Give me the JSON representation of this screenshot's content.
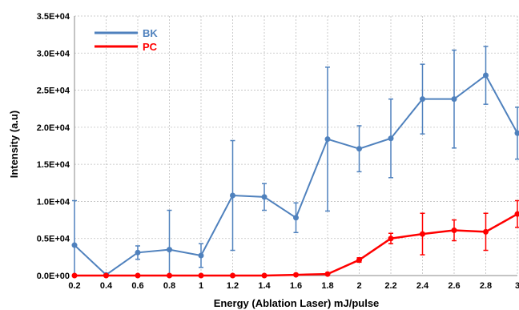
{
  "chart_data": {
    "type": "line",
    "title": "",
    "xlabel": "Energy (Ablation Laser) mJ/pulse",
    "ylabel": "Intensity (a.u)",
    "x": [
      0.2,
      0.4,
      0.6,
      0.8,
      1.0,
      1.2,
      1.4,
      1.6,
      1.8,
      2.0,
      2.2,
      2.4,
      2.6,
      2.8,
      3.0
    ],
    "x_tick_labels": [
      "0.2",
      "0.4",
      "0.6",
      "0.8",
      "1",
      "1.2",
      "1.4",
      "1.6",
      "1.8",
      "2",
      "2.2",
      "2.4",
      "2.6",
      "2.8",
      "3"
    ],
    "y_tick_labels": [
      "0.0E+00",
      "0.5E+04",
      "1.0E+04",
      "1.5E+04",
      "2.0E+04",
      "2.5E+04",
      "3.0E+04",
      "3.5E+04"
    ],
    "ylim": [
      0,
      35000
    ],
    "grid": true,
    "legend_position": "top-left",
    "series": [
      {
        "name": "BK",
        "color": "#4f81bd",
        "values": [
          4100,
          100,
          3100,
          3500,
          2700,
          10800,
          10600,
          7800,
          18400,
          17100,
          18500,
          23800,
          23800,
          27000,
          19200
        ],
        "err": [
          6000,
          150,
          900,
          5300,
          1600,
          7400,
          1800,
          2000,
          9700,
          3100,
          5300,
          4700,
          6600,
          3900,
          3500
        ]
      },
      {
        "name": "PC",
        "color": "#ff0000",
        "values": [
          0,
          0,
          0,
          0,
          0,
          0,
          0,
          100,
          200,
          2100,
          5000,
          5600,
          6100,
          5900,
          8300
        ],
        "err": [
          0,
          0,
          0,
          0,
          0,
          0,
          0,
          100,
          100,
          300,
          700,
          2800,
          1400,
          2500,
          1800
        ]
      }
    ]
  }
}
